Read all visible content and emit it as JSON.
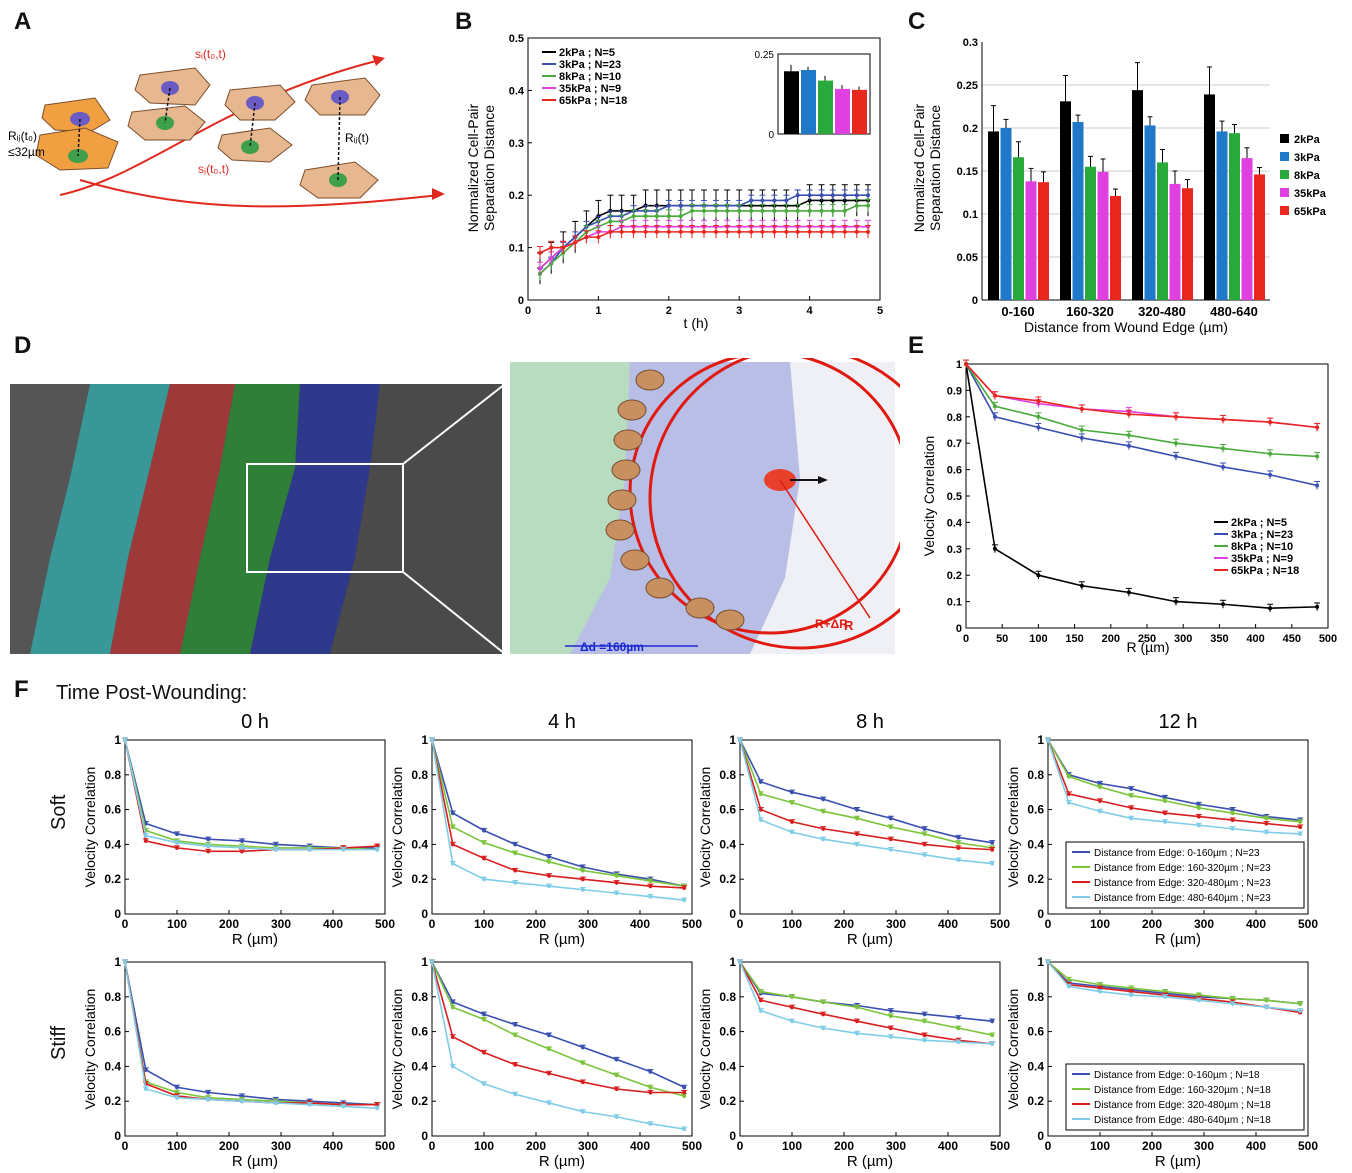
{
  "panel_labels": {
    "A": "A",
    "B": "B",
    "C": "C",
    "D": "D",
    "E": "E",
    "F": "F"
  },
  "panelA": {
    "s_i": "sᵢ(t₀,t)",
    "s_j": "sⱼ(t₀,t)",
    "r0": "Rᵢⱼ(t₀)",
    "r0_cond": "≤32µm",
    "rt": "Rᵢⱼ(t)"
  },
  "panelD": {
    "R": "R",
    "RdR": "R+ΔR",
    "delta": "Δd =160µm"
  },
  "F_header": "Time Post-Wounding:",
  "row_labels": [
    "Soft",
    "Stiff"
  ],
  "colors": {
    "k2": "#000000",
    "k3": "#1f78c8",
    "k8": "#2aaa3c",
    "k35": "#e040e0",
    "k65": "#e8281e",
    "b": "#3a4fb0",
    "g": "#7cc43c",
    "r": "#d81e1e",
    "c": "#7fcde6"
  },
  "chart_data": [
    {
      "id": "B",
      "type": "line",
      "xlabel": "t (h)",
      "ylabel": "Normalized Cell-Pair\nSeparation Distance",
      "xlim": [
        0,
        5
      ],
      "ylim": [
        0,
        0.5
      ],
      "xticks": [
        0,
        1,
        2,
        3,
        4,
        5
      ],
      "yticks": [
        0,
        0.1,
        0.2,
        0.3,
        0.4,
        0.5
      ],
      "x": [
        0.17,
        0.33,
        0.5,
        0.67,
        0.83,
        1,
        1.17,
        1.33,
        1.5,
        1.67,
        1.83,
        2,
        2.17,
        2.33,
        2.5,
        2.67,
        2.83,
        3,
        3.17,
        3.33,
        3.5,
        3.67,
        3.83,
        4,
        4.17,
        4.33,
        4.5,
        4.67,
        4.83
      ],
      "series": [
        {
          "name": "2kPa ; N=5",
          "color": "#000000",
          "values": [
            0.06,
            0.08,
            0.1,
            0.12,
            0.14,
            0.16,
            0.17,
            0.17,
            0.17,
            0.18,
            0.18,
            0.18,
            0.18,
            0.18,
            0.18,
            0.18,
            0.18,
            0.18,
            0.18,
            0.18,
            0.18,
            0.18,
            0.18,
            0.19,
            0.19,
            0.19,
            0.19,
            0.19,
            0.19
          ],
          "err": 0.03
        },
        {
          "name": "3kPa ; N=23",
          "color": "#3a4fb0",
          "values": [
            0.05,
            0.07,
            0.1,
            0.12,
            0.14,
            0.15,
            0.16,
            0.16,
            0.17,
            0.17,
            0.17,
            0.18,
            0.18,
            0.18,
            0.18,
            0.18,
            0.18,
            0.18,
            0.19,
            0.19,
            0.19,
            0.19,
            0.2,
            0.2,
            0.2,
            0.2,
            0.2,
            0.2,
            0.2
          ],
          "err": 0.01
        },
        {
          "name": "8kPa ; N=10",
          "color": "#4aaa3c",
          "values": [
            0.05,
            0.07,
            0.09,
            0.11,
            0.13,
            0.14,
            0.15,
            0.15,
            0.16,
            0.16,
            0.16,
            0.16,
            0.16,
            0.17,
            0.17,
            0.17,
            0.17,
            0.17,
            0.17,
            0.17,
            0.17,
            0.17,
            0.17,
            0.17,
            0.17,
            0.17,
            0.17,
            0.18,
            0.18
          ],
          "err": 0.012
        },
        {
          "name": "35kPa ; N=9",
          "color": "#e040e0",
          "values": [
            0.06,
            0.08,
            0.1,
            0.11,
            0.12,
            0.13,
            0.13,
            0.14,
            0.14,
            0.14,
            0.14,
            0.14,
            0.14,
            0.14,
            0.14,
            0.14,
            0.14,
            0.14,
            0.14,
            0.14,
            0.14,
            0.14,
            0.14,
            0.14,
            0.14,
            0.14,
            0.14,
            0.14,
            0.14
          ],
          "err": 0.012
        },
        {
          "name": "65kPa ; N=18",
          "color": "#e8281e",
          "values": [
            0.09,
            0.1,
            0.1,
            0.11,
            0.12,
            0.12,
            0.13,
            0.13,
            0.13,
            0.13,
            0.13,
            0.13,
            0.13,
            0.13,
            0.13,
            0.13,
            0.13,
            0.13,
            0.13,
            0.13,
            0.13,
            0.13,
            0.13,
            0.13,
            0.13,
            0.13,
            0.13,
            0.13,
            0.13
          ],
          "err": 0.012
        }
      ],
      "inset": {
        "ylim": [
          0,
          0.25
        ],
        "yticks": [
          0,
          0.25
        ],
        "values": [
          0.196,
          0.2,
          0.167,
          0.141,
          0.138
        ],
        "err": [
          0.02,
          0.01,
          0.015,
          0.012,
          0.01
        ],
        "colors": [
          "#000000",
          "#1f78c8",
          "#2aaa3c",
          "#e040e0",
          "#e8281e"
        ]
      }
    },
    {
      "id": "C",
      "type": "bar",
      "xlabel": "Distance from Wound    Edge (µm)",
      "ylabel": "Normalized Cell-Pair\nSeparation Distance",
      "ylim": [
        0,
        0.3
      ],
      "yticks": [
        0,
        0.05,
        0.1,
        0.15,
        0.2,
        0.25,
        0.3
      ],
      "categories": [
        "0-160",
        "160-320",
        "320-480",
        "480-640"
      ],
      "series": [
        {
          "name": "2kPa",
          "color": "#000000",
          "values": [
            0.196,
            0.231,
            0.244,
            0.239
          ],
          "err": [
            0.03,
            0.03,
            0.032,
            0.032
          ]
        },
        {
          "name": "3kPa",
          "color": "#1f78c8",
          "values": [
            0.2,
            0.207,
            0.203,
            0.196
          ],
          "err": [
            0.01,
            0.008,
            0.01,
            0.012
          ]
        },
        {
          "name": "8kPa",
          "color": "#2aaa3c",
          "values": [
            0.166,
            0.155,
            0.16,
            0.194
          ],
          "err": [
            0.018,
            0.012,
            0.015,
            0.01
          ]
        },
        {
          "name": "35kPa",
          "color": "#e040e0",
          "values": [
            0.138,
            0.149,
            0.135,
            0.165
          ],
          "err": [
            0.015,
            0.015,
            0.015,
            0.012
          ]
        },
        {
          "name": "65kPa",
          "color": "#e8281e",
          "values": [
            0.137,
            0.121,
            0.13,
            0.146
          ],
          "err": [
            0.012,
            0.008,
            0.01,
            0.008
          ]
        }
      ]
    },
    {
      "id": "E",
      "type": "line",
      "xlabel": "R (µm)",
      "ylabel": "Velocity Correlation",
      "xlim": [
        0,
        500
      ],
      "ylim": [
        0,
        1
      ],
      "xticks": [
        0,
        50,
        100,
        150,
        200,
        250,
        300,
        350,
        400,
        450,
        500
      ],
      "yticks": [
        0,
        0.1,
        0.2,
        0.3,
        0.4,
        0.5,
        0.6,
        0.7,
        0.8,
        0.9,
        1
      ],
      "x": [
        0,
        40,
        100,
        160,
        225,
        290,
        355,
        420,
        485
      ],
      "series": [
        {
          "name": "2kPa ; N=5",
          "color": "#000000",
          "values": [
            1,
            0.3,
            0.2,
            0.16,
            0.135,
            0.1,
            0.09,
            0.075,
            0.08
          ]
        },
        {
          "name": "3kPa ; N=23",
          "color": "#3a4fb0",
          "values": [
            1,
            0.8,
            0.76,
            0.72,
            0.69,
            0.65,
            0.61,
            0.58,
            0.54
          ]
        },
        {
          "name": "8kPa ; N=10",
          "color": "#4aaa3c",
          "values": [
            1,
            0.84,
            0.8,
            0.75,
            0.73,
            0.7,
            0.68,
            0.66,
            0.65
          ]
        },
        {
          "name": "35kPa ; N=9",
          "color": "#e040e0",
          "values": [
            1,
            0.88,
            0.85,
            0.83,
            0.82,
            0.8,
            0.79,
            0.78,
            0.76
          ]
        },
        {
          "name": "65kPa ; N=18",
          "color": "#e8281e",
          "values": [
            1,
            0.88,
            0.86,
            0.83,
            0.81,
            0.8,
            0.79,
            0.78,
            0.76
          ]
        }
      ]
    },
    {
      "id": "F",
      "type": "line",
      "xlabel": "R (µm)",
      "ylabel": "Velocity Correlation",
      "xlim": [
        0,
        500
      ],
      "ylim": [
        0,
        1
      ],
      "xticks": [
        0,
        100,
        200,
        300,
        400,
        500
      ],
      "yticks": [
        0,
        0.2,
        0.4,
        0.6,
        0.8,
        1
      ],
      "columns": [
        "0 h",
        "4 h",
        "8 h",
        "12 h"
      ],
      "x": [
        0,
        40,
        100,
        160,
        225,
        290,
        355,
        420,
        485
      ],
      "legend_soft": [
        "Distance from Edge: 0-160µm ; N=23",
        "Distance from Edge: 160-320µm ; N=23",
        "Distance from Edge: 320-480µm ; N=23",
        "Distance from Edge: 480-640µm ; N=23"
      ],
      "legend_stiff": [
        "Distance from Edge: 0-160µm ; N=18",
        "Distance from Edge: 160-320µm ; N=18",
        "Distance from Edge: 320-480µm ; N=18",
        "Distance from Edge: 480-640µm ; N=18"
      ],
      "panels": [
        {
          "row": "Soft",
          "col": "0 h",
          "series": [
            [
              1,
              0.52,
              0.46,
              0.43,
              0.42,
              0.4,
              0.39,
              0.38,
              0.38
            ],
            [
              1,
              0.48,
              0.42,
              0.4,
              0.39,
              0.38,
              0.38,
              0.38,
              0.37
            ],
            [
              1,
              0.42,
              0.38,
              0.36,
              0.36,
              0.37,
              0.37,
              0.38,
              0.39
            ],
            [
              1,
              0.45,
              0.41,
              0.39,
              0.38,
              0.37,
              0.37,
              0.37,
              0.37
            ]
          ]
        },
        {
          "row": "Soft",
          "col": "4 h",
          "series": [
            [
              1,
              0.58,
              0.48,
              0.4,
              0.33,
              0.27,
              0.23,
              0.2,
              0.16
            ],
            [
              1,
              0.5,
              0.41,
              0.35,
              0.3,
              0.25,
              0.22,
              0.19,
              0.16
            ],
            [
              1,
              0.4,
              0.32,
              0.25,
              0.22,
              0.2,
              0.18,
              0.16,
              0.15
            ],
            [
              1,
              0.29,
              0.2,
              0.18,
              0.16,
              0.14,
              0.12,
              0.1,
              0.08
            ]
          ]
        },
        {
          "row": "Soft",
          "col": "8 h",
          "series": [
            [
              1,
              0.76,
              0.7,
              0.66,
              0.6,
              0.55,
              0.49,
              0.44,
              0.41
            ],
            [
              1,
              0.69,
              0.64,
              0.59,
              0.55,
              0.5,
              0.46,
              0.41,
              0.38
            ],
            [
              1,
              0.6,
              0.53,
              0.49,
              0.46,
              0.43,
              0.4,
              0.38,
              0.37
            ],
            [
              1,
              0.54,
              0.47,
              0.43,
              0.4,
              0.37,
              0.34,
              0.31,
              0.29
            ]
          ]
        },
        {
          "row": "Soft",
          "col": "12 h",
          "series": [
            [
              1,
              0.8,
              0.75,
              0.72,
              0.67,
              0.63,
              0.6,
              0.56,
              0.54
            ],
            [
              1,
              0.79,
              0.73,
              0.68,
              0.65,
              0.61,
              0.58,
              0.55,
              0.53
            ],
            [
              1,
              0.69,
              0.65,
              0.61,
              0.58,
              0.56,
              0.54,
              0.52,
              0.5
            ],
            [
              1,
              0.64,
              0.59,
              0.55,
              0.53,
              0.51,
              0.49,
              0.47,
              0.46
            ]
          ]
        },
        {
          "row": "Stiff",
          "col": "0 h",
          "series": [
            [
              1,
              0.38,
              0.28,
              0.25,
              0.23,
              0.21,
              0.2,
              0.19,
              0.18
            ],
            [
              1,
              0.31,
              0.25,
              0.22,
              0.21,
              0.2,
              0.19,
              0.18,
              0.18
            ],
            [
              1,
              0.3,
              0.23,
              0.21,
              0.2,
              0.19,
              0.19,
              0.18,
              0.18
            ],
            [
              1,
              0.27,
              0.22,
              0.21,
              0.2,
              0.19,
              0.18,
              0.17,
              0.16
            ]
          ]
        },
        {
          "row": "Stiff",
          "col": "4 h",
          "series": [
            [
              1,
              0.77,
              0.7,
              0.64,
              0.58,
              0.51,
              0.44,
              0.37,
              0.28
            ],
            [
              1,
              0.74,
              0.67,
              0.58,
              0.5,
              0.42,
              0.35,
              0.28,
              0.23
            ],
            [
              1,
              0.57,
              0.48,
              0.41,
              0.36,
              0.31,
              0.27,
              0.25,
              0.25
            ],
            [
              1,
              0.4,
              0.3,
              0.24,
              0.19,
              0.14,
              0.11,
              0.07,
              0.04
            ]
          ]
        },
        {
          "row": "Stiff",
          "col": "8 h",
          "series": [
            [
              1,
              0.82,
              0.8,
              0.77,
              0.75,
              0.72,
              0.7,
              0.68,
              0.66
            ],
            [
              1,
              0.83,
              0.8,
              0.77,
              0.74,
              0.69,
              0.66,
              0.62,
              0.58
            ],
            [
              1,
              0.78,
              0.74,
              0.7,
              0.66,
              0.62,
              0.58,
              0.55,
              0.53
            ],
            [
              1,
              0.72,
              0.66,
              0.62,
              0.59,
              0.57,
              0.55,
              0.54,
              0.53
            ]
          ]
        },
        {
          "row": "Stiff",
          "col": "12 h",
          "series": [
            [
              1,
              0.88,
              0.86,
              0.84,
              0.82,
              0.8,
              0.79,
              0.78,
              0.76
            ],
            [
              1,
              0.9,
              0.87,
              0.85,
              0.83,
              0.81,
              0.79,
              0.78,
              0.76
            ],
            [
              1,
              0.87,
              0.85,
              0.83,
              0.81,
              0.79,
              0.77,
              0.74,
              0.71
            ],
            [
              1,
              0.86,
              0.83,
              0.81,
              0.8,
              0.78,
              0.76,
              0.74,
              0.72
            ]
          ]
        }
      ]
    }
  ]
}
